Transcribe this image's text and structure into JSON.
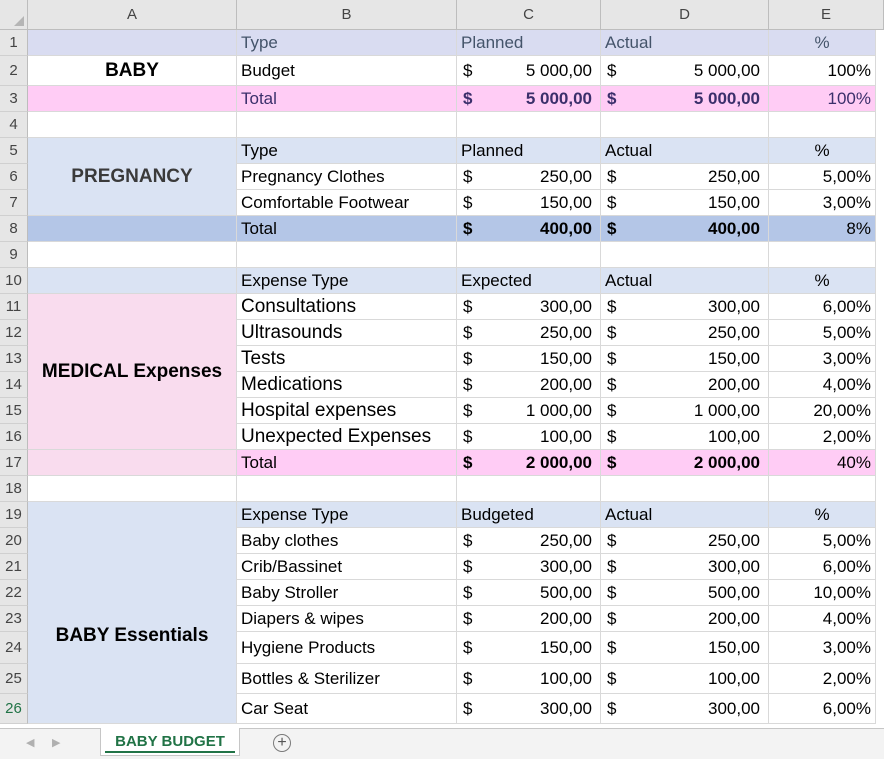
{
  "columns": [
    "A",
    "B",
    "C",
    "D",
    "E"
  ],
  "rows": [
    "1",
    "2",
    "3",
    "4",
    "5",
    "6",
    "7",
    "8",
    "9",
    "10",
    "11",
    "12",
    "13",
    "14",
    "15",
    "16",
    "17",
    "18",
    "19",
    "20",
    "21",
    "22",
    "23",
    "24",
    "25",
    "26"
  ],
  "currency": "$",
  "sections": {
    "baby": {
      "title": "BABY",
      "header": {
        "type": "Type",
        "planned": "Planned",
        "actual": "Actual",
        "pct": "%"
      },
      "items": [
        {
          "type": "Budget",
          "planned": "5 000,00",
          "actual": "5 000,00",
          "pct": "100%"
        }
      ],
      "total": {
        "label": "Total",
        "planned": "5 000,00",
        "actual": "5 000,00",
        "pct": "100%"
      }
    },
    "pregnancy": {
      "title": "PREGNANCY",
      "header": {
        "type": "Type",
        "planned": "Planned",
        "actual": "Actual",
        "pct": "%"
      },
      "items": [
        {
          "type": "Pregnancy Clothes",
          "planned": "250,00",
          "actual": "250,00",
          "pct": "5,00%"
        },
        {
          "type": "Comfortable Footwear",
          "planned": "150,00",
          "actual": "150,00",
          "pct": "3,00%"
        }
      ],
      "total": {
        "label": "Total",
        "planned": "400,00",
        "actual": "400,00",
        "pct": "8%"
      }
    },
    "medical": {
      "title": "MEDICAL Expenses",
      "header": {
        "type": "Expense Type",
        "planned": "Expected",
        "actual": "Actual",
        "pct": "%"
      },
      "items": [
        {
          "type": "Consultations",
          "planned": "300,00",
          "actual": "300,00",
          "pct": "6,00%"
        },
        {
          "type": "Ultrasounds",
          "planned": "250,00",
          "actual": "250,00",
          "pct": "5,00%"
        },
        {
          "type": "Tests",
          "planned": "150,00",
          "actual": "150,00",
          "pct": "3,00%"
        },
        {
          "type": "Medications",
          "planned": "200,00",
          "actual": "200,00",
          "pct": "4,00%"
        },
        {
          "type": "Hospital expenses",
          "planned": "1 000,00",
          "actual": "1 000,00",
          "pct": "20,00%"
        },
        {
          "type": "Unexpected Expenses",
          "planned": "100,00",
          "actual": "100,00",
          "pct": "2,00%"
        }
      ],
      "total": {
        "label": "Total",
        "planned": "2 000,00",
        "actual": "2 000,00",
        "pct": "40%"
      }
    },
    "essentials": {
      "title": "BABY Essentials",
      "header": {
        "type": "Expense Type",
        "planned": "Budgeted",
        "actual": "Actual",
        "pct": "%"
      },
      "items": [
        {
          "type": "Baby clothes",
          "planned": "250,00",
          "actual": "250,00",
          "pct": "5,00%"
        },
        {
          "type": "Crib/Bassinet",
          "planned": "300,00",
          "actual": "300,00",
          "pct": "6,00%"
        },
        {
          "type": "Baby Stroller",
          "planned": "500,00",
          "actual": "500,00",
          "pct": "10,00%"
        },
        {
          "type": "Diapers & wipes",
          "planned": "200,00",
          "actual": "200,00",
          "pct": "4,00%"
        },
        {
          "type": "Hygiene Products",
          "planned": "150,00",
          "actual": "150,00",
          "pct": "3,00%"
        },
        {
          "type": "Bottles & Sterilizer",
          "planned": "100,00",
          "actual": "100,00",
          "pct": "2,00%"
        },
        {
          "type": "Car Seat",
          "planned": "300,00",
          "actual": "300,00",
          "pct": "6,00%"
        }
      ]
    }
  },
  "sheet_tab": "BABY BUDGET",
  "colors": {
    "header_blue": "#dae3f3",
    "header_lavender": "#d9dcf1",
    "total_pink": "#ffccf5",
    "medical_pink": "#f9dcee",
    "total_blue": "#b4c6e7",
    "excel_green": "#217346"
  },
  "icons": {
    "add_sheet": "plus-circle-icon",
    "prev_sheet": "chevron-left-icon",
    "next_sheet": "chevron-right-icon"
  }
}
